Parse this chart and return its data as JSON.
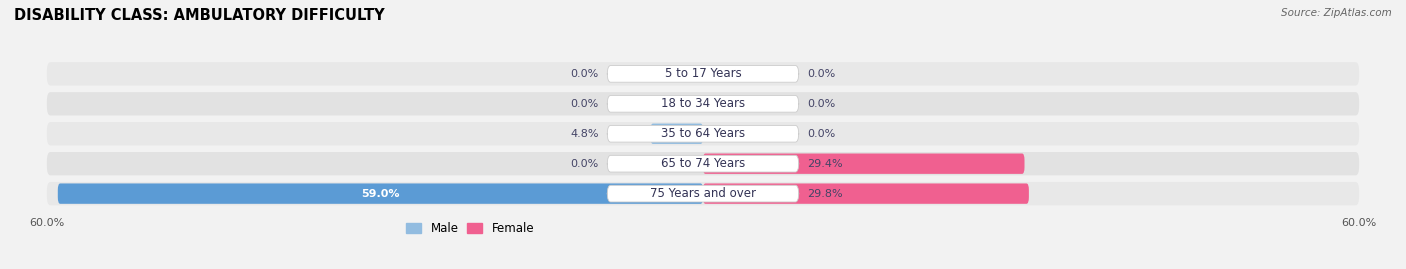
{
  "title": "DISABILITY CLASS: AMBULATORY DIFFICULTY",
  "source": "Source: ZipAtlas.com",
  "categories": [
    "5 to 17 Years",
    "18 to 34 Years",
    "35 to 64 Years",
    "65 to 74 Years",
    "75 Years and over"
  ],
  "male_values": [
    0.0,
    0.0,
    4.8,
    0.0,
    59.0
  ],
  "female_values": [
    0.0,
    0.0,
    0.0,
    29.4,
    29.8
  ],
  "male_color": "#92bce0",
  "male_color_dark": "#5b9bd5",
  "female_color": "#f4a0c0",
  "female_color_dark": "#f06090",
  "bg_color": "#f2f2f2",
  "bar_bg_even": "#e8e8e8",
  "bar_bg_odd": "#e0e0e0",
  "max_val": 60.0,
  "axis_label_left": "60.0%",
  "axis_label_right": "60.0%",
  "title_fontsize": 10.5,
  "label_fontsize": 8.5,
  "value_fontsize": 8,
  "source_fontsize": 7.5,
  "legend_fontsize": 8.5
}
